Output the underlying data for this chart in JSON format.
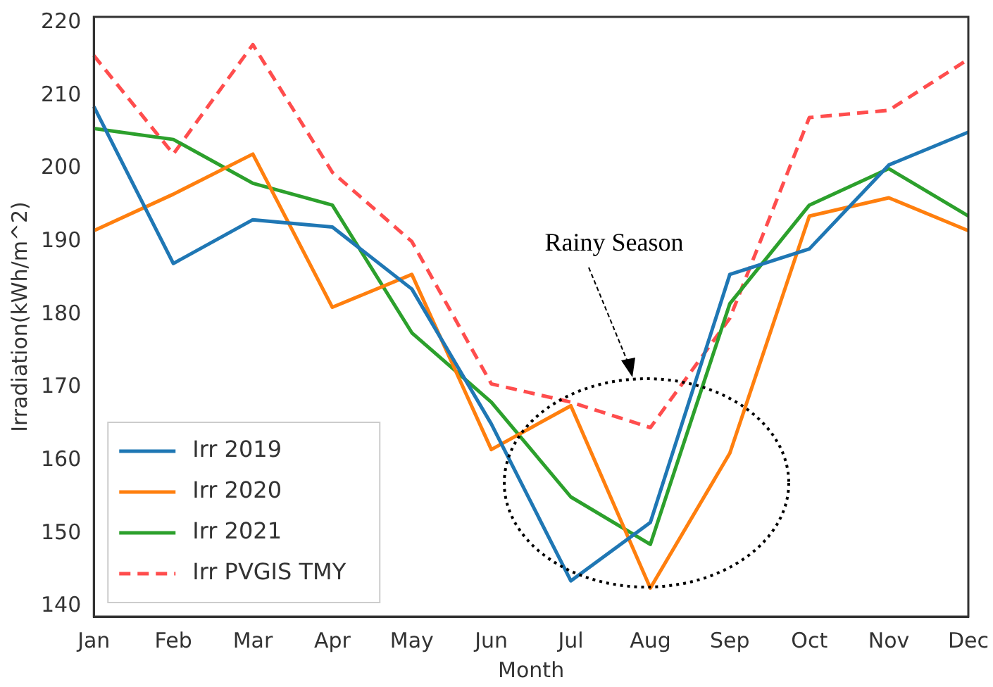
{
  "chart_data": {
    "type": "line",
    "xlabel": "Month",
    "ylabel": "Irradiation(kWh/m^2)",
    "categories": [
      "Jan",
      "Feb",
      "Mar",
      "Apr",
      "May",
      "Jun",
      "Jul",
      "Aug",
      "Sep",
      "Oct",
      "Nov",
      "Dec"
    ],
    "series": [
      {
        "name": "Irr 2019",
        "color": "#1f77b4",
        "values": [
          208.5,
          187,
          193,
          192,
          183.5,
          165,
          143.5,
          151.5,
          185.5,
          189,
          200.5,
          205
        ]
      },
      {
        "name": "Irr 2020",
        "color": "#ff7f0e",
        "values": [
          191.5,
          196.5,
          202,
          181,
          185.5,
          161.5,
          167.5,
          142.5,
          161,
          193.5,
          196,
          191.5
        ]
      },
      {
        "name": "Irr 2021",
        "color": "#2ca02c",
        "values": [
          205.5,
          204,
          198,
          195,
          177.5,
          168,
          155,
          148.5,
          181.5,
          195,
          200,
          193.5
        ]
      },
      {
        "name": "Irr PVGIS TMY",
        "color": "#ff4d4d",
        "line_style": "dashed",
        "values": [
          215.5,
          202,
          217,
          199.5,
          190,
          170.5,
          168,
          164.5,
          179.5,
          207,
          208,
          215
        ]
      }
    ],
    "ylim": [
      138.6,
      220.8
    ],
    "yticks": [
      140,
      150,
      160,
      170,
      180,
      190,
      200,
      210,
      220
    ],
    "legend": "bottom left",
    "grid": false,
    "marker": "none",
    "line_style": "solid",
    "annotations": [
      "Rainy Season"
    ]
  }
}
